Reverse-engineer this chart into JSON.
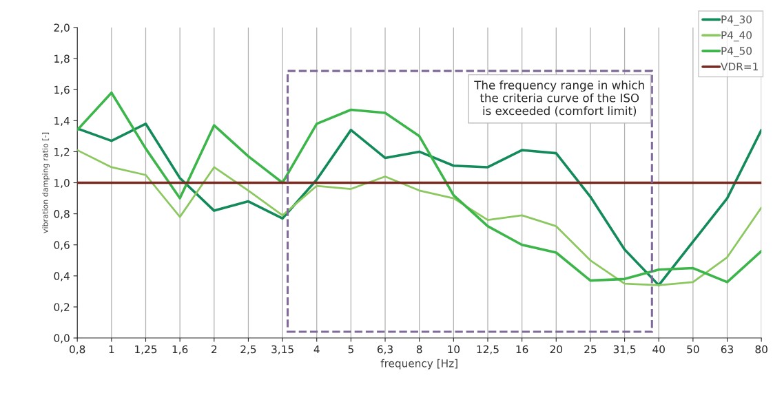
{
  "chart_data": {
    "type": "line",
    "xlabel": "frequency [Hz]",
    "ylabel": "vibration damping ratio [-]",
    "categories": [
      "0,8",
      "1",
      "1,25",
      "1,6",
      "2",
      "2,5",
      "3,15",
      "4",
      "5",
      "6,3",
      "8",
      "10",
      "12,5",
      "16",
      "20",
      "25",
      "31,5",
      "40",
      "50",
      "63",
      "80"
    ],
    "series": [
      {
        "name": "P4_30",
        "color": "#138a5a",
        "values": [
          1.35,
          1.27,
          1.38,
          1.03,
          0.82,
          0.88,
          0.77,
          1.02,
          1.34,
          1.16,
          1.2,
          1.11,
          1.1,
          1.21,
          1.19,
          0.91,
          0.57,
          0.34,
          0.62,
          0.9,
          1.34
        ]
      },
      {
        "name": "P4_40",
        "color": "#8cc860",
        "values": [
          1.21,
          1.1,
          1.05,
          0.78,
          1.1,
          0.95,
          0.79,
          0.98,
          0.96,
          1.04,
          0.95,
          0.9,
          0.76,
          0.79,
          0.72,
          0.5,
          0.35,
          0.34,
          0.36,
          0.52,
          0.84
        ]
      },
      {
        "name": "P4_50",
        "color": "#3cb54a",
        "values": [
          1.34,
          1.58,
          1.22,
          0.9,
          1.37,
          1.17,
          1.0,
          1.38,
          1.47,
          1.45,
          1.3,
          0.92,
          0.72,
          0.6,
          0.55,
          0.37,
          0.38,
          0.44,
          0.45,
          0.36,
          0.56
        ]
      },
      {
        "name": "VDR=1",
        "color": "#7b2a22",
        "values": [
          1,
          1,
          1,
          1,
          1,
          1,
          1,
          1,
          1,
          1,
          1,
          1,
          1,
          1,
          1,
          1,
          1,
          1,
          1,
          1,
          1
        ]
      }
    ],
    "ylim": [
      0,
      2
    ],
    "yticks": [
      {
        "value": 0,
        "label": "0,0"
      },
      {
        "value": 0.2,
        "label": "0,2"
      },
      {
        "value": 0.4,
        "label": "0,4"
      },
      {
        "value": 0.6,
        "label": "0,6"
      },
      {
        "value": 0.8,
        "label": "0,8"
      },
      {
        "value": 1,
        "label": "1,0"
      },
      {
        "value": 1.2,
        "label": "1,2"
      },
      {
        "value": 1.4,
        "label": "1,4"
      },
      {
        "value": 1.6,
        "label": "1,6"
      },
      {
        "value": 1.8,
        "label": "1,8"
      },
      {
        "value": 2,
        "label": "2,0"
      }
    ],
    "annotations": [
      "The frequency range in which\nthe criteria curve of the ISO\nis exceeded (comfort limit)"
    ],
    "grid": "x",
    "legend": "top right",
    "marker": "none",
    "line_style": "solid"
  }
}
